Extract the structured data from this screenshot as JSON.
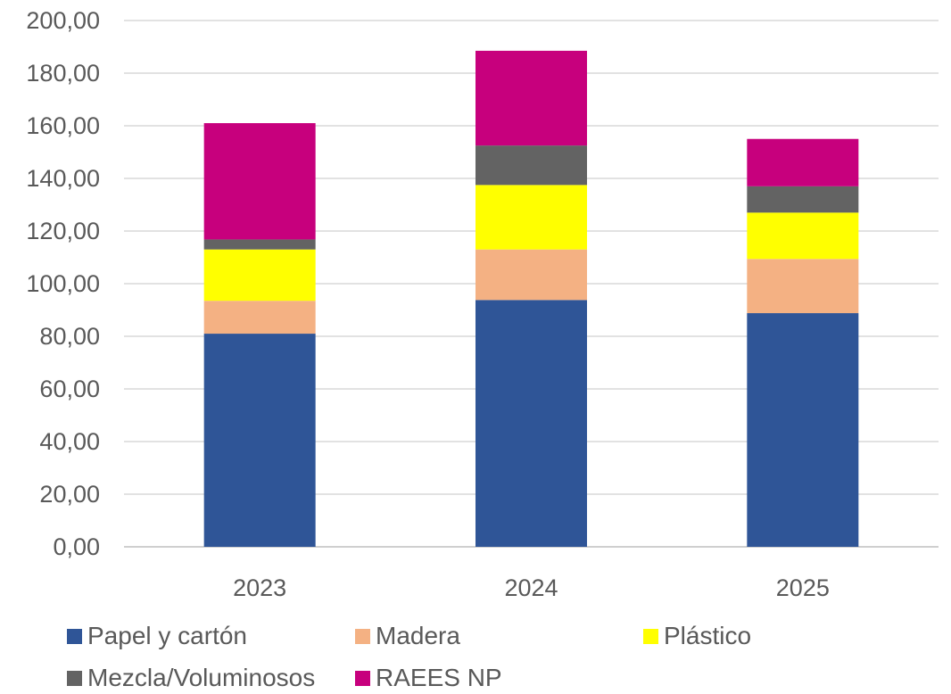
{
  "chart_data": {
    "type": "bar",
    "stacked": true,
    "categories": [
      "2023",
      "2024",
      "2025"
    ],
    "series": [
      {
        "name": "Papel y cartón",
        "color": "#2F5597",
        "values": [
          81.0,
          93.8,
          88.8
        ]
      },
      {
        "name": "Madera",
        "color": "#F4B183",
        "values": [
          12.5,
          19.2,
          20.6
        ]
      },
      {
        "name": "Plástico",
        "color": "#FFFF00",
        "values": [
          19.5,
          24.5,
          17.6
        ]
      },
      {
        "name": "Mezcla/Voluminosos",
        "color": "#636363",
        "values": [
          3.8,
          15.0,
          10.0
        ]
      },
      {
        "name": "RAEES NP",
        "color": "#C7007D",
        "values": [
          44.2,
          36.0,
          18.0
        ]
      }
    ],
    "ylim": [
      0,
      200
    ],
    "yticks": [
      "0,00",
      "20,00",
      "40,00",
      "60,00",
      "80,00",
      "100,00",
      "120,00",
      "140,00",
      "160,00",
      "180,00",
      "200,00"
    ],
    "grid": true,
    "legend_position": "bottom"
  }
}
